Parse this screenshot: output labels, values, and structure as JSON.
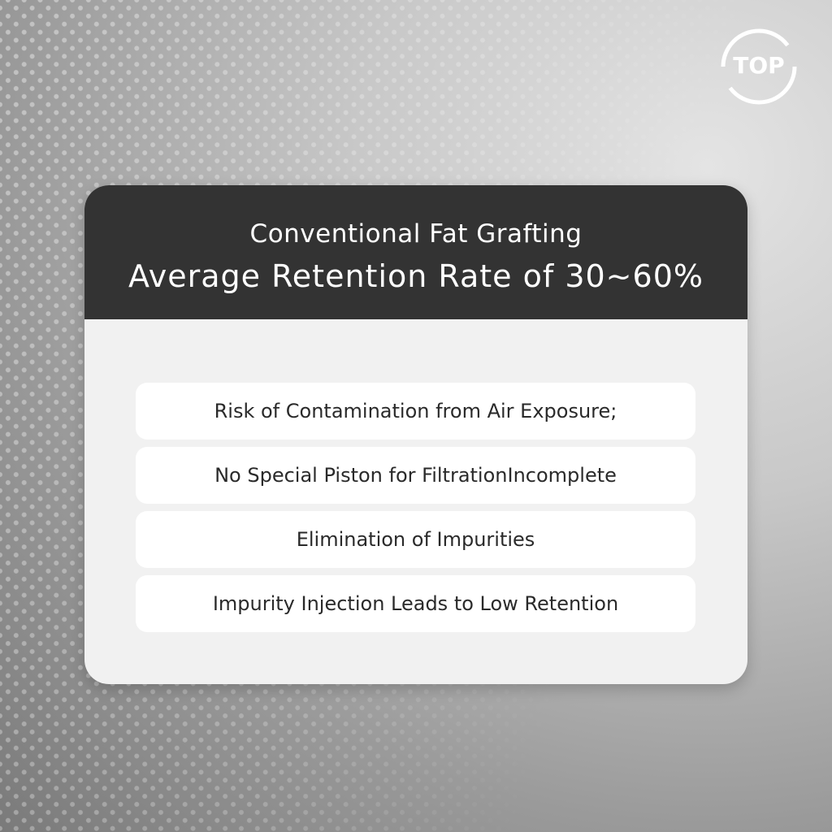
{
  "logo": {
    "text": "TOP"
  },
  "card": {
    "header": {
      "title": "Conventional Fat Grafting",
      "subtitle": "Average Retention Rate of 30~60%"
    },
    "items": [
      "Risk of Contamination from Air Exposure;",
      "No Special Piston for FiltrationIncomplete",
      "Elimination of Impurities",
      "Impurity Injection Leads to Low Retention"
    ]
  }
}
